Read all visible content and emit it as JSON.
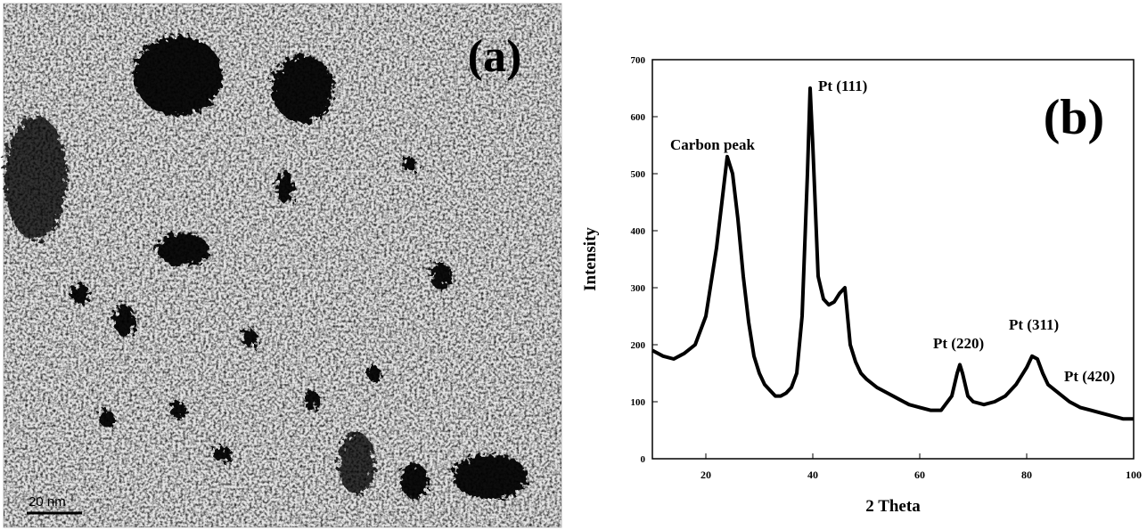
{
  "image_panel": {
    "label": "(a)",
    "scale_bar": "20 nm"
  },
  "chart_data": {
    "type": "line",
    "label": "(b)",
    "x_label": "2 Theta",
    "y_label": "Intensity",
    "color": "#000000",
    "x": [
      10,
      12,
      14,
      16,
      18,
      20,
      22,
      23,
      24,
      25,
      26,
      27,
      28,
      29,
      30,
      31,
      32,
      33,
      34,
      35,
      36,
      37,
      38,
      39,
      39.5,
      40,
      41,
      42,
      43,
      44,
      45,
      46,
      47,
      48,
      49,
      50,
      52,
      54,
      56,
      58,
      60,
      62,
      64,
      66,
      67,
      67.5,
      68,
      69,
      70,
      72,
      74,
      76,
      78,
      80,
      81,
      82,
      83,
      84,
      86,
      88,
      90,
      92,
      94,
      96,
      98,
      100
    ],
    "values": [
      190,
      180,
      175,
      185,
      200,
      250,
      370,
      450,
      530,
      500,
      420,
      320,
      240,
      180,
      150,
      130,
      120,
      110,
      110,
      115,
      125,
      150,
      250,
      500,
      650,
      550,
      320,
      280,
      270,
      275,
      290,
      300,
      200,
      170,
      150,
      140,
      125,
      115,
      105,
      95,
      90,
      85,
      85,
      110,
      150,
      165,
      150,
      110,
      100,
      95,
      100,
      110,
      130,
      160,
      180,
      175,
      150,
      130,
      115,
      100,
      90,
      85,
      80,
      75,
      70,
      70
    ],
    "xlim": [
      10,
      100
    ],
    "ylim": [
      0,
      700
    ],
    "xticks": [
      20,
      40,
      60,
      80,
      100
    ],
    "yticks": [
      0,
      100,
      200,
      300,
      400,
      500,
      600,
      700
    ],
    "annotations": [
      "Carbon peak",
      "Pt (111)",
      "Pt (220)",
      "Pt (311)",
      "Pt (420)"
    ]
  }
}
